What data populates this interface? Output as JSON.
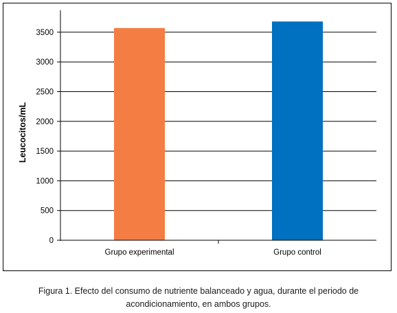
{
  "chart_data": {
    "type": "bar",
    "categories": [
      "Grupo experimental",
      "Grupo control"
    ],
    "values": [
      3570,
      3680
    ],
    "bar_colors": [
      "#F47D43",
      "#0070C0"
    ],
    "ylabel": "Leucocitos/mL",
    "ylim": [
      0,
      3500
    ],
    "yticks": [
      "0",
      "500",
      "1000",
      "1500",
      "2000",
      "2500",
      "3000",
      "3500"
    ],
    "grid": true,
    "legend": "none"
  },
  "caption": {
    "line1": "Figura 1. Efecto del consumo de nutriente balanceado y agua, durante el periodo de",
    "line2": "acondicionamiento, en ambos grupos."
  }
}
